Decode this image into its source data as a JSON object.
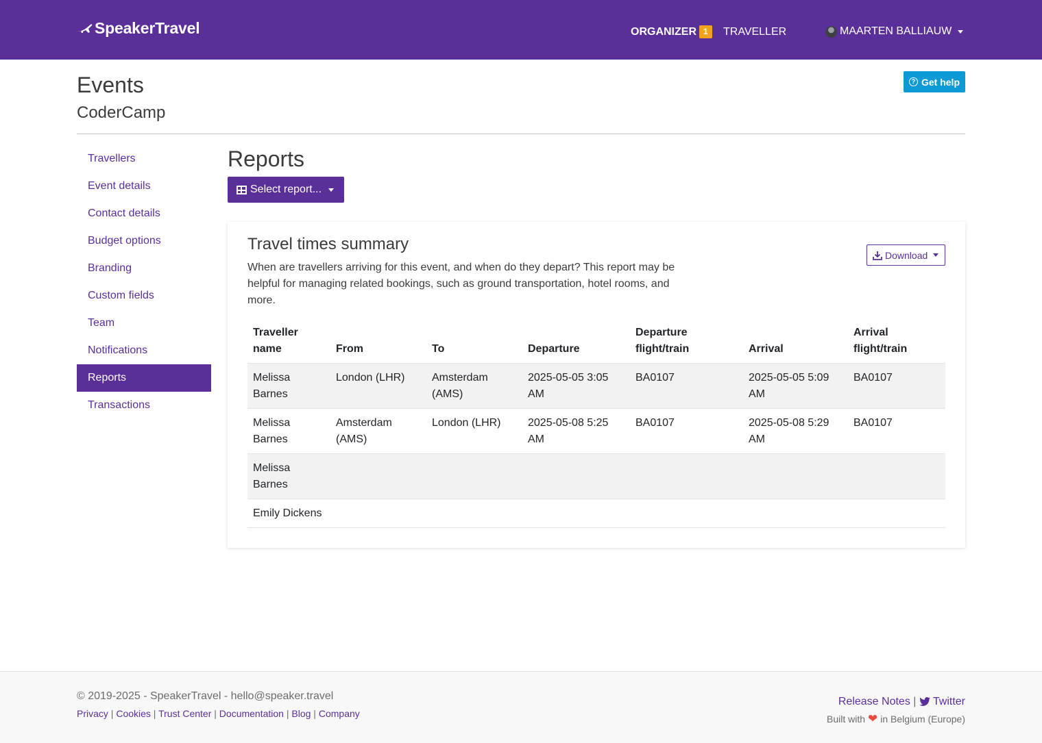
{
  "navbar": {
    "brand": "SpeakerTravel",
    "organizer_label": "ORGANIZER",
    "organizer_badge": "1",
    "traveller_label": "TRAVELLER",
    "user_name": "MAARTEN BALLIAUW"
  },
  "header": {
    "title": "Events",
    "event_name": "CoderCamp",
    "help_label": "Get help"
  },
  "sidebar": {
    "items": [
      {
        "label": "Travellers"
      },
      {
        "label": "Event details"
      },
      {
        "label": "Contact details"
      },
      {
        "label": "Budget options"
      },
      {
        "label": "Branding"
      },
      {
        "label": "Custom fields"
      },
      {
        "label": "Team"
      },
      {
        "label": "Notifications"
      },
      {
        "label": "Reports",
        "active": true
      },
      {
        "label": "Transactions"
      }
    ]
  },
  "main": {
    "title": "Reports",
    "select_label": "Select report...",
    "card": {
      "title": "Travel times summary",
      "description": "When are travellers arriving for this event, and when do they depart? This report may be helpful for managing related bookings, such as ground transportation, hotel rooms, and more.",
      "download_label": "Download",
      "columns": [
        "Traveller name",
        "From",
        "To",
        "Departure",
        "Departure flight/train",
        "Arrival",
        "Arrival flight/train"
      ],
      "rows": [
        [
          "Melissa Barnes",
          "London (LHR)",
          "Amsterdam (AMS)",
          "2025-05-05 3:05 AM",
          "BA0107",
          "2025-05-05 5:09 AM",
          "BA0107"
        ],
        [
          "Melissa Barnes",
          "Amsterdam (AMS)",
          "London (LHR)",
          "2025-05-08 5:25 AM",
          "BA0107",
          "2025-05-08 5:29 AM",
          "BA0107"
        ],
        [
          "Melissa Barnes",
          "",
          "",
          "",
          "",
          "",
          ""
        ],
        [
          "Emily Dickens",
          "",
          "",
          "",
          "",
          "",
          ""
        ]
      ]
    }
  },
  "footer": {
    "copyright": "© 2019-2025 - SpeakerTravel - hello@speaker.travel",
    "links": [
      "Privacy",
      "Cookies",
      "Trust Center",
      "Documentation",
      "Blog",
      "Company"
    ],
    "release_notes": "Release Notes",
    "twitter": "Twitter",
    "built_prefix": "Built with",
    "built_suffix": "in Belgium (Europe)"
  }
}
